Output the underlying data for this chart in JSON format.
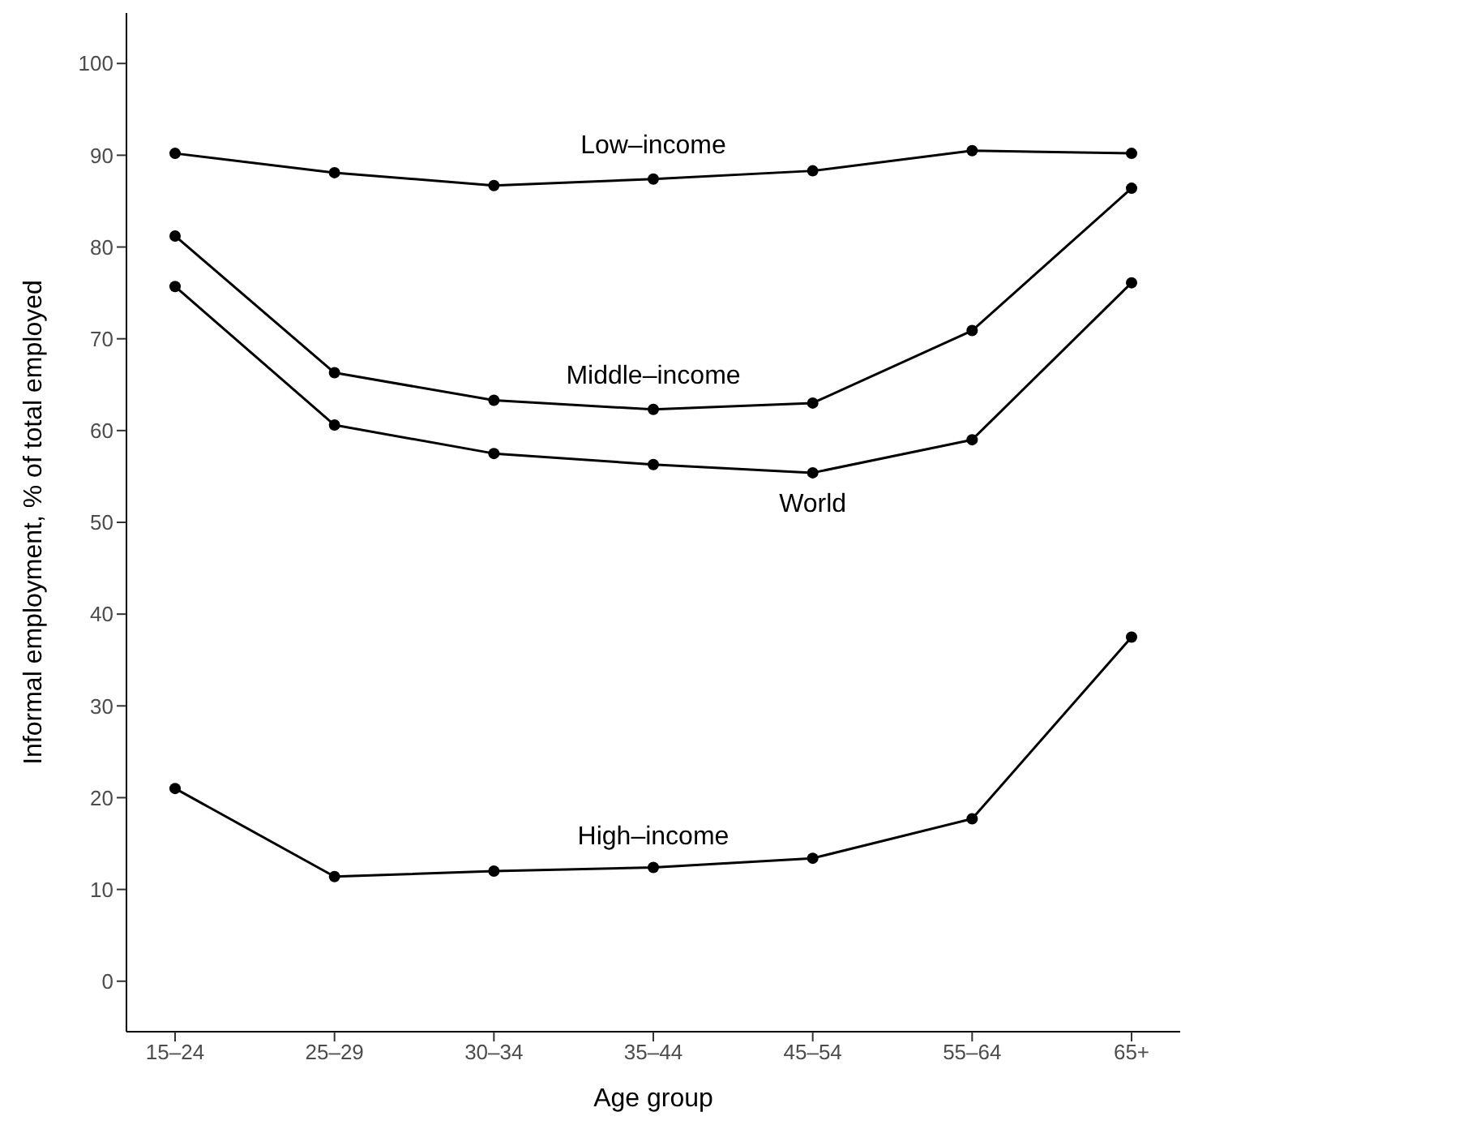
{
  "chart_data": {
    "type": "line",
    "xlabel": "Age group",
    "ylabel": "Informal employment, % of total employed",
    "categories": [
      "15–24",
      "25–29",
      "30–34",
      "35–44",
      "45–54",
      "55–64",
      "65+"
    ],
    "ylim": [
      -5.5,
      105.5
    ],
    "yticks": [
      0,
      10,
      20,
      30,
      40,
      50,
      60,
      70,
      80,
      90,
      100
    ],
    "series": [
      {
        "name": "Low–income",
        "color": "#000000",
        "values": [
          90.2,
          88.1,
          86.7,
          87.4,
          88.3,
          90.5,
          90.2
        ]
      },
      {
        "name": "Middle–income",
        "color": "#000000",
        "values": [
          81.2,
          66.3,
          63.3,
          62.3,
          63.0,
          70.9,
          86.4
        ]
      },
      {
        "name": "World",
        "color": "#000000",
        "values": [
          75.7,
          60.6,
          57.5,
          56.3,
          55.4,
          59.0,
          76.1
        ]
      },
      {
        "name": "High–income",
        "color": "#000000",
        "values": [
          21.0,
          11.4,
          12.0,
          12.4,
          13.4,
          17.7,
          37.5
        ]
      }
    ],
    "grid": false,
    "legend": false,
    "marker": "circle",
    "line_style": "solid"
  }
}
